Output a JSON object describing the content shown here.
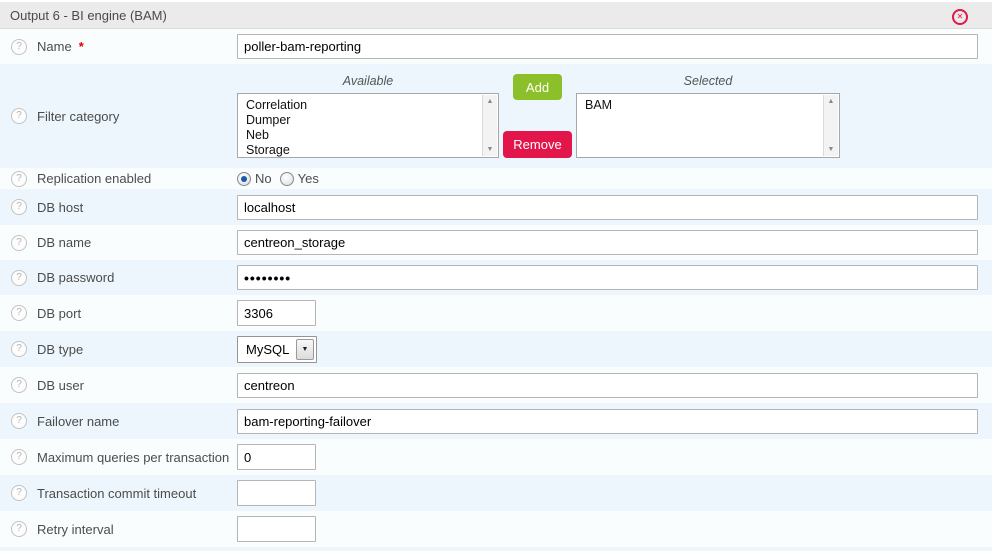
{
  "header": {
    "title": "Output 6 - BI engine (BAM)"
  },
  "icons": {
    "help": "?",
    "close": "✕",
    "arrow_up": "▲",
    "arrow_down": "▼",
    "select_arrow": "▼"
  },
  "colors": {
    "add_green": "#8cc02a",
    "remove_crimson": "#e2164a",
    "row_even_blue": "#ecf6fc",
    "header_gray": "#ebebeb",
    "required_red": "#e60000"
  },
  "form": {
    "name": {
      "label": "Name",
      "required": "*",
      "value": "poller-bam-reporting"
    },
    "filter_category": {
      "label": "Filter category",
      "available_header": "Available",
      "selected_header": "Selected",
      "available_items": [
        "Correlation",
        "Dumper",
        "Neb",
        "Storage"
      ],
      "selected_items": [
        "BAM"
      ],
      "add_label": "Add",
      "remove_label": "Remove"
    },
    "replication_enabled": {
      "label": "Replication enabled",
      "options": [
        {
          "label": "No",
          "selected": true
        },
        {
          "label": "Yes",
          "selected": false
        }
      ]
    },
    "db_host": {
      "label": "DB host",
      "value": "localhost"
    },
    "db_name": {
      "label": "DB name",
      "value": "centreon_storage"
    },
    "db_password": {
      "label": "DB password",
      "value": "••••••••"
    },
    "db_port": {
      "label": "DB port",
      "value": "3306"
    },
    "db_type": {
      "label": "DB type",
      "value": "MySQL"
    },
    "db_user": {
      "label": "DB user",
      "value": "centreon"
    },
    "failover_name": {
      "label": "Failover name",
      "value": "bam-reporting-failover"
    },
    "max_queries": {
      "label": "Maximum queries per transaction",
      "value": "0"
    },
    "commit_timeout": {
      "label": "Transaction commit timeout",
      "value": ""
    },
    "retry_interval": {
      "label": "Retry interval",
      "value": ""
    }
  }
}
